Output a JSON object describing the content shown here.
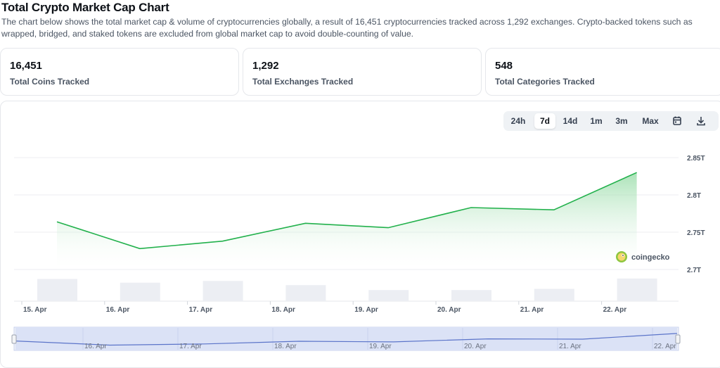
{
  "header": {
    "title": "Total Crypto Market Cap Chart",
    "description": "The chart below shows the total market cap & volume of cryptocurrencies globally, a result of 16,451 cryptocurrencies tracked across 1,292 exchanges. Crypto-backed tokens such as wrapped, bridged, and staked tokens are excluded from global market cap to avoid double-counting of value."
  },
  "stats": [
    {
      "value": "16,451",
      "label": "Total Coins Tracked"
    },
    {
      "value": "1,292",
      "label": "Total Exchanges Tracked"
    },
    {
      "value": "548",
      "label": "Total Categories Tracked"
    }
  ],
  "range_selector": {
    "options": [
      "24h",
      "7d",
      "14d",
      "1m",
      "3m",
      "Max"
    ],
    "selected": "7d",
    "icons": [
      "calendar-icon",
      "download-icon"
    ]
  },
  "watermark": "coingecko",
  "colors": {
    "line": "#22b14c",
    "area_top": "#8fd9a0",
    "volume_bar": "#eceef3",
    "navigator_fill": "#dbe2f6",
    "navigator_line": "#5b74c9"
  },
  "chart_data": {
    "type": "area",
    "title": "",
    "xlabel": "",
    "ylabel": "",
    "x": [
      "15. Apr",
      "16. Apr",
      "17. Apr",
      "18. Apr",
      "19. Apr",
      "20. Apr",
      "21. Apr",
      "22. Apr"
    ],
    "x_ticks": [
      "15. Apr",
      "16. Apr",
      "17. Apr",
      "18. Apr",
      "19. Apr",
      "20. Apr",
      "21. Apr",
      "22. Apr"
    ],
    "y_ticks": [
      "2.7T",
      "2.75T",
      "2.8T",
      "2.85T"
    ],
    "y_tick_values": [
      2.7,
      2.75,
      2.8,
      2.85
    ],
    "ylim": [
      2.7,
      2.85
    ],
    "series": [
      {
        "values": [
          2.764,
          2.728,
          2.738,
          2.762,
          2.756,
          2.783,
          2.78,
          2.83
        ]
      }
    ],
    "volume_relative": [
      0.9,
      0.75,
      0.82,
      0.65,
      0.45,
      0.45,
      0.5,
      0.92
    ],
    "navigator": {
      "x_ticks": [
        "16. Apr",
        "17. Apr",
        "18. Apr",
        "19. Apr",
        "20. Apr",
        "21. Apr",
        "22. Apr"
      ]
    },
    "grid": true,
    "legend": "none"
  }
}
